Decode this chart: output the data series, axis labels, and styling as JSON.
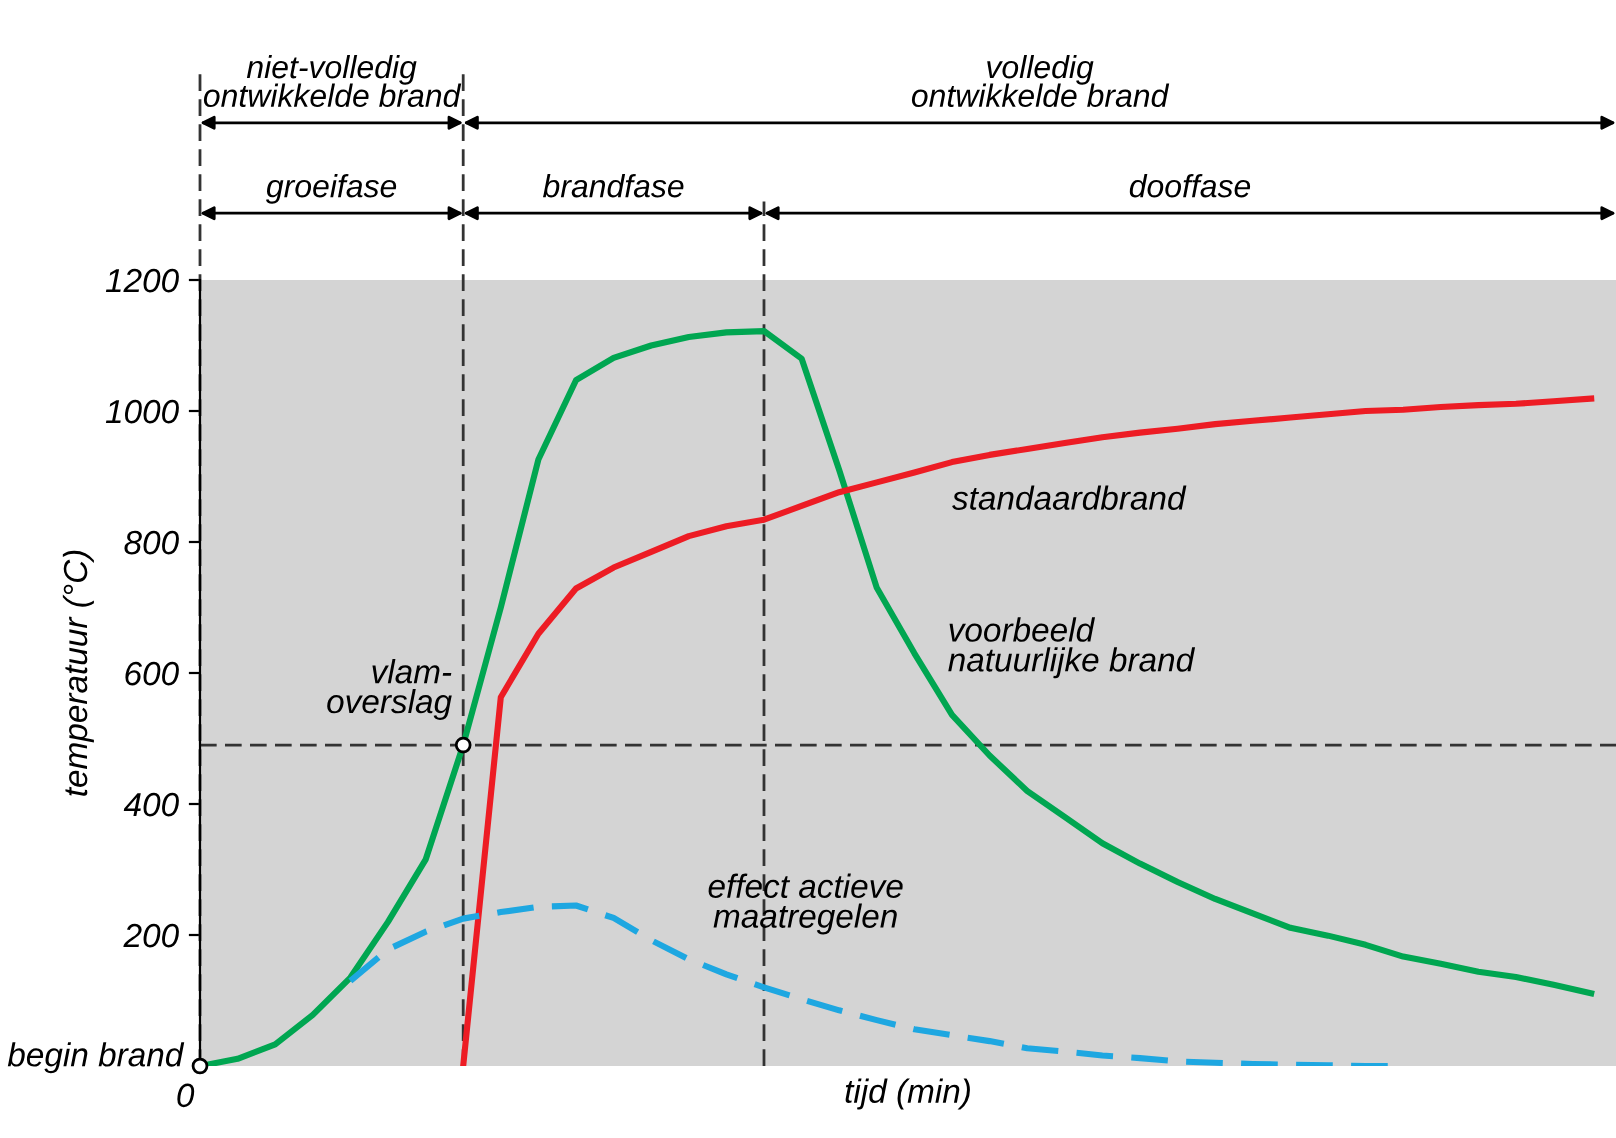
{
  "chart_data": {
    "type": "line",
    "xlabel": "tijd (min)",
    "ylabel": "temperatuur (°C)",
    "categories": [
      null,
      null,
      null,
      null,
      null,
      null,
      null,
      null,
      null,
      null,
      null,
      null,
      null,
      null,
      null,
      null,
      null,
      null,
      null,
      null,
      null,
      null,
      null,
      null,
      null,
      null,
      null,
      null,
      null,
      null,
      null,
      null,
      null,
      null,
      null,
      null,
      null,
      null
    ],
    "ylim": [
      0,
      1200
    ],
    "yticks": [
      200,
      400,
      600,
      800,
      1000,
      1200
    ],
    "grid": false,
    "legend": false,
    "marker": "none",
    "series": [
      {
        "name": "voorbeeld\nnatuurlijke brand",
        "color": "#00a651",
        "line_style": "solid",
        "values": [
          0,
          11,
          33,
          78,
          135,
          220,
          315,
          490,
          700,
          926,
          1047,
          1081,
          1100,
          1113,
          1120,
          1122,
          1080,
          910,
          730,
          630,
          536,
          474,
          420,
          380,
          340,
          309,
          281,
          255,
          233,
          211,
          199,
          185,
          167,
          156,
          144,
          136,
          124,
          111
        ]
      },
      {
        "name": "standaardbrand",
        "color": "#ed1c24",
        "line_style": "solid",
        "values": [
          null,
          null,
          null,
          null,
          null,
          null,
          null,
          0,
          563,
          660,
          729,
          761,
          785,
          809,
          824,
          834,
          855,
          876,
          891,
          906,
          922,
          933,
          942,
          951,
          960,
          967,
          973,
          980,
          985,
          990,
          995,
          1000,
          1002,
          1006,
          1009,
          1011,
          1015,
          1019
        ]
      },
      {
        "name": "effect actieve\nmaatregelen",
        "color": "#1ea7e1",
        "line_style": "dashed",
        "values": [
          null,
          null,
          null,
          null,
          130,
          178,
          205,
          225,
          235,
          243,
          245,
          226,
          192,
          163,
          140,
          120,
          102,
          85,
          70,
          56,
          47,
          38,
          27,
          22,
          16,
          12,
          7,
          5,
          3,
          2,
          1,
          0,
          0,
          null,
          null,
          null,
          null,
          null
        ]
      }
    ],
    "ref_lines": [
      {
        "axis": "y",
        "value": 490,
        "color": "#333333",
        "line_style": "dashed"
      }
    ],
    "annotations": [
      "vlam-\noverslag",
      "begin brand",
      "0",
      "niet-volledig\nontwikkelde brand",
      "volledig\nontwikkelde brand",
      "groeifase",
      "brandfase",
      "dooffase"
    ]
  }
}
